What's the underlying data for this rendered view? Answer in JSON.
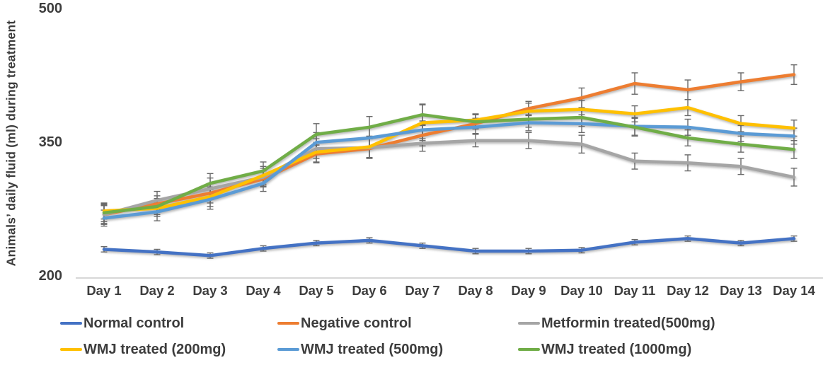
{
  "chart_data": {
    "type": "line",
    "title": "",
    "ylabel": "Animals’ daily fluid (ml) during treatment",
    "xlabel": "",
    "ylim": [
      200,
      500
    ],
    "yticks": [
      200,
      350,
      500
    ],
    "grid": false,
    "legend_position": "bottom",
    "error_bars": true,
    "categories": [
      "Day 1",
      "Day 2",
      "Day 3",
      "Day 4",
      "Day 5",
      "Day 6",
      "Day 7",
      "Day 8",
      "Day 9",
      "Day 10",
      "Day 11",
      "Day 12",
      "Day 13",
      "Day 14"
    ],
    "series": [
      {
        "name": "Normal control",
        "color": "#4472C4",
        "values": [
          229,
          226,
          222,
          230,
          236,
          239,
          233,
          227,
          227,
          228,
          237,
          241,
          236,
          241
        ],
        "error": [
          3,
          3,
          3,
          3,
          3,
          3,
          3,
          3,
          3,
          3,
          3,
          3,
          3,
          3
        ]
      },
      {
        "name": "Negative control",
        "color": "#ED7D31",
        "values": [
          268,
          280,
          292,
          308,
          336,
          342,
          357,
          370,
          387,
          399,
          415,
          408,
          417,
          425
        ],
        "error": [
          10,
          9,
          11,
          9,
          10,
          11,
          12,
          6,
          8,
          11,
          12,
          11,
          10,
          11
        ]
      },
      {
        "name": "Metformin treated(500mg)",
        "color": "#A5A5A5",
        "values": [
          268,
          284,
          297,
          310,
          342,
          343,
          348,
          351,
          351,
          347,
          328,
          326,
          322,
          310
        ],
        "error": [
          11,
          10,
          12,
          10,
          11,
          12,
          9,
          7,
          9,
          10,
          9,
          9,
          9,
          10
        ]
      },
      {
        "name": "WMJ treated (200mg)",
        "color": "#FFC000",
        "values": [
          272,
          275,
          288,
          312,
          338,
          344,
          371,
          374,
          384,
          386,
          381,
          388,
          370,
          365
        ],
        "error": [
          9,
          9,
          11,
          10,
          11,
          12,
          20,
          7,
          9,
          10,
          9,
          9,
          9,
          9
        ]
      },
      {
        "name": "WMJ treated (500mg)",
        "color": "#5B9BD5",
        "values": [
          264,
          271,
          285,
          303,
          349,
          354,
          363,
          366,
          371,
          370,
          367,
          366,
          359,
          356
        ],
        "error": [
          9,
          10,
          11,
          9,
          11,
          12,
          10,
          7,
          9,
          10,
          10,
          9,
          9,
          9
        ]
      },
      {
        "name": "WMJ treated (1000mg)",
        "color": "#70AD47",
        "values": [
          270,
          277,
          303,
          317,
          358,
          366,
          380,
          372,
          375,
          377,
          366,
          354,
          347,
          341
        ],
        "error": [
          10,
          9,
          11,
          10,
          12,
          12,
          12,
          8,
          9,
          10,
          10,
          9,
          9,
          10
        ]
      }
    ],
    "error_bar_color": "#595959",
    "axis_line_color": "#BFBFBF",
    "text_color": "#3d3d3d",
    "background": "#ffffff"
  }
}
